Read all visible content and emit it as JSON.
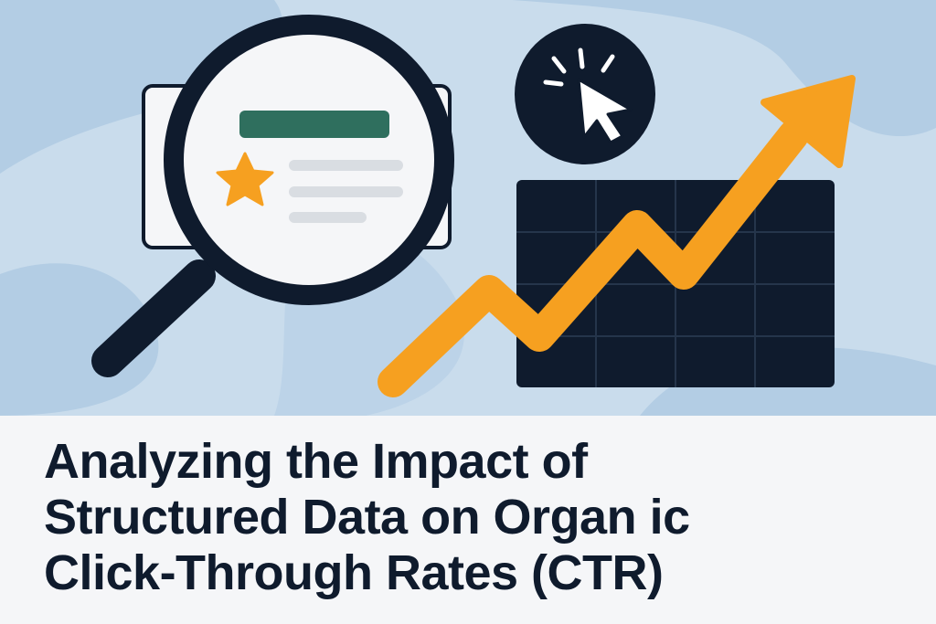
{
  "title": {
    "line1": "Analyzing the Impact of",
    "line2": "Structured Data on Organ ic",
    "line3": "Click-Through Rates (CTR)"
  },
  "colors": {
    "background_light": "#c9dcec",
    "background_wave": "#a9c6e0",
    "navy": "#0f1b2d",
    "green_bar": "#2f6f5e",
    "star": "#f6a020",
    "arrow": "#f6a020",
    "gray_lines": "#d9dde2",
    "panel_bg": "#f5f6f8"
  },
  "icons": [
    "magnifying-glass-icon",
    "search-result-card-icon",
    "star-icon",
    "cursor-click-icon",
    "grid-chart-icon",
    "trend-up-arrow-icon"
  ]
}
